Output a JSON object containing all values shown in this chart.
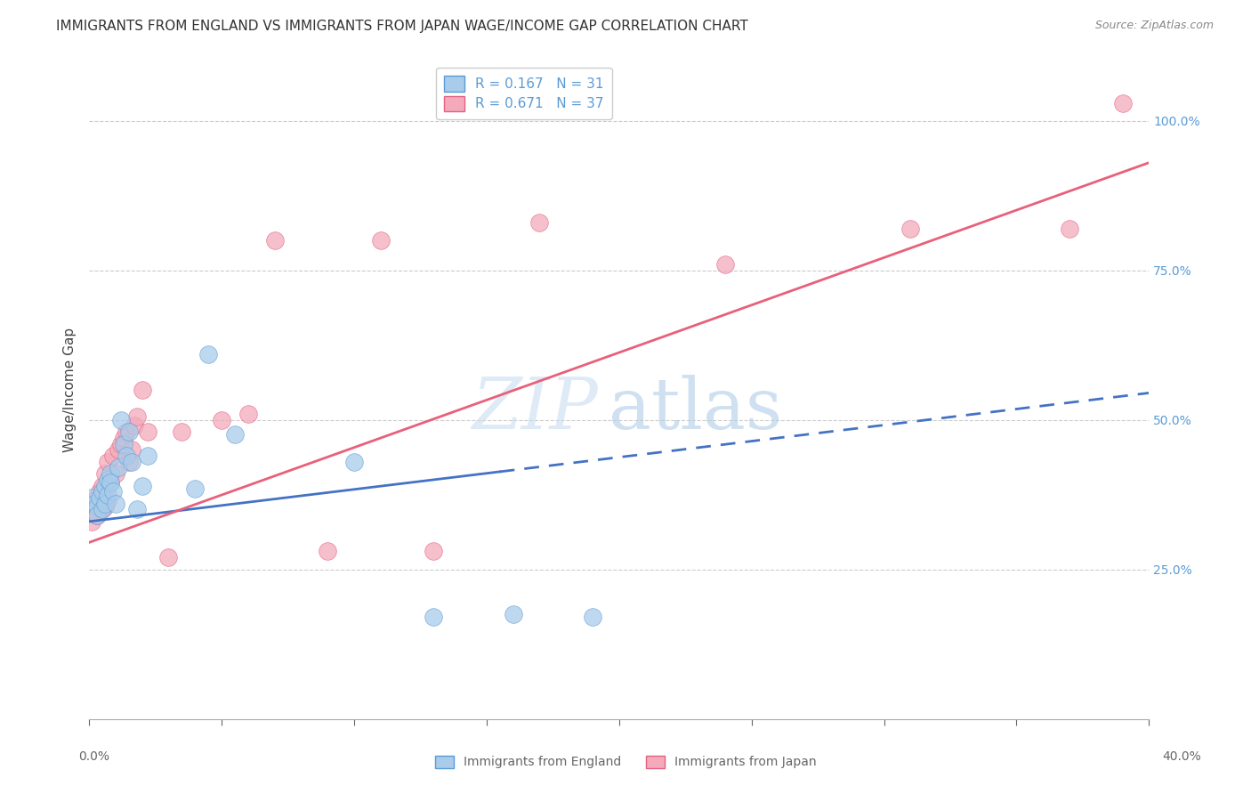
{
  "title": "IMMIGRANTS FROM ENGLAND VS IMMIGRANTS FROM JAPAN WAGE/INCOME GAP CORRELATION CHART",
  "source": "Source: ZipAtlas.com",
  "ylabel": "Wage/Income Gap",
  "ylabel_right_ticks": [
    0.25,
    0.5,
    0.75,
    1.0
  ],
  "ylabel_right_labels": [
    "25.0%",
    "50.0%",
    "75.0%",
    "100.0%"
  ],
  "england_color": "#A8CCEA",
  "england_color_dark": "#5B9BD5",
  "japan_color": "#F4AABB",
  "japan_color_dark": "#E06080",
  "trend_england_color": "#4472C4",
  "trend_japan_color": "#E8607A",
  "R_england": 0.167,
  "N_england": 31,
  "R_japan": 0.671,
  "N_japan": 37,
  "watermark_zip": "ZIP",
  "watermark_atlas": "atlas",
  "xlim": [
    0.0,
    0.4
  ],
  "ylim": [
    0.0,
    1.1
  ],
  "background_color": "#FFFFFF",
  "grid_color": "#CCCCCC",
  "england_scatter_x": [
    0.001,
    0.002,
    0.003,
    0.003,
    0.004,
    0.005,
    0.005,
    0.006,
    0.006,
    0.007,
    0.007,
    0.008,
    0.008,
    0.009,
    0.01,
    0.011,
    0.012,
    0.013,
    0.014,
    0.015,
    0.016,
    0.018,
    0.02,
    0.022,
    0.04,
    0.045,
    0.055,
    0.1,
    0.13,
    0.16,
    0.19
  ],
  "england_scatter_y": [
    0.37,
    0.36,
    0.355,
    0.34,
    0.37,
    0.35,
    0.38,
    0.36,
    0.39,
    0.375,
    0.4,
    0.41,
    0.395,
    0.38,
    0.36,
    0.42,
    0.5,
    0.46,
    0.44,
    0.48,
    0.43,
    0.35,
    0.39,
    0.44,
    0.385,
    0.61,
    0.475,
    0.43,
    0.17,
    0.175,
    0.17
  ],
  "japan_scatter_x": [
    0.001,
    0.002,
    0.003,
    0.003,
    0.004,
    0.005,
    0.005,
    0.006,
    0.006,
    0.007,
    0.007,
    0.008,
    0.009,
    0.01,
    0.011,
    0.012,
    0.013,
    0.014,
    0.015,
    0.016,
    0.017,
    0.018,
    0.02,
    0.022,
    0.03,
    0.035,
    0.05,
    0.06,
    0.07,
    0.09,
    0.11,
    0.13,
    0.17,
    0.24,
    0.31,
    0.37,
    0.39
  ],
  "japan_scatter_y": [
    0.33,
    0.35,
    0.34,
    0.37,
    0.38,
    0.35,
    0.39,
    0.355,
    0.41,
    0.365,
    0.43,
    0.395,
    0.44,
    0.41,
    0.45,
    0.46,
    0.47,
    0.48,
    0.43,
    0.45,
    0.49,
    0.505,
    0.55,
    0.48,
    0.27,
    0.48,
    0.5,
    0.51,
    0.8,
    0.28,
    0.8,
    0.28,
    0.83,
    0.76,
    0.82,
    0.82,
    1.03
  ],
  "trend_eng_x0": 0.0,
  "trend_eng_y0": 0.33,
  "trend_eng_x1": 0.4,
  "trend_eng_y1": 0.545,
  "trend_eng_dash_start": 0.155,
  "trend_jpn_x0": 0.0,
  "trend_jpn_y0": 0.295,
  "trend_jpn_x1": 0.4,
  "trend_jpn_y1": 0.93
}
